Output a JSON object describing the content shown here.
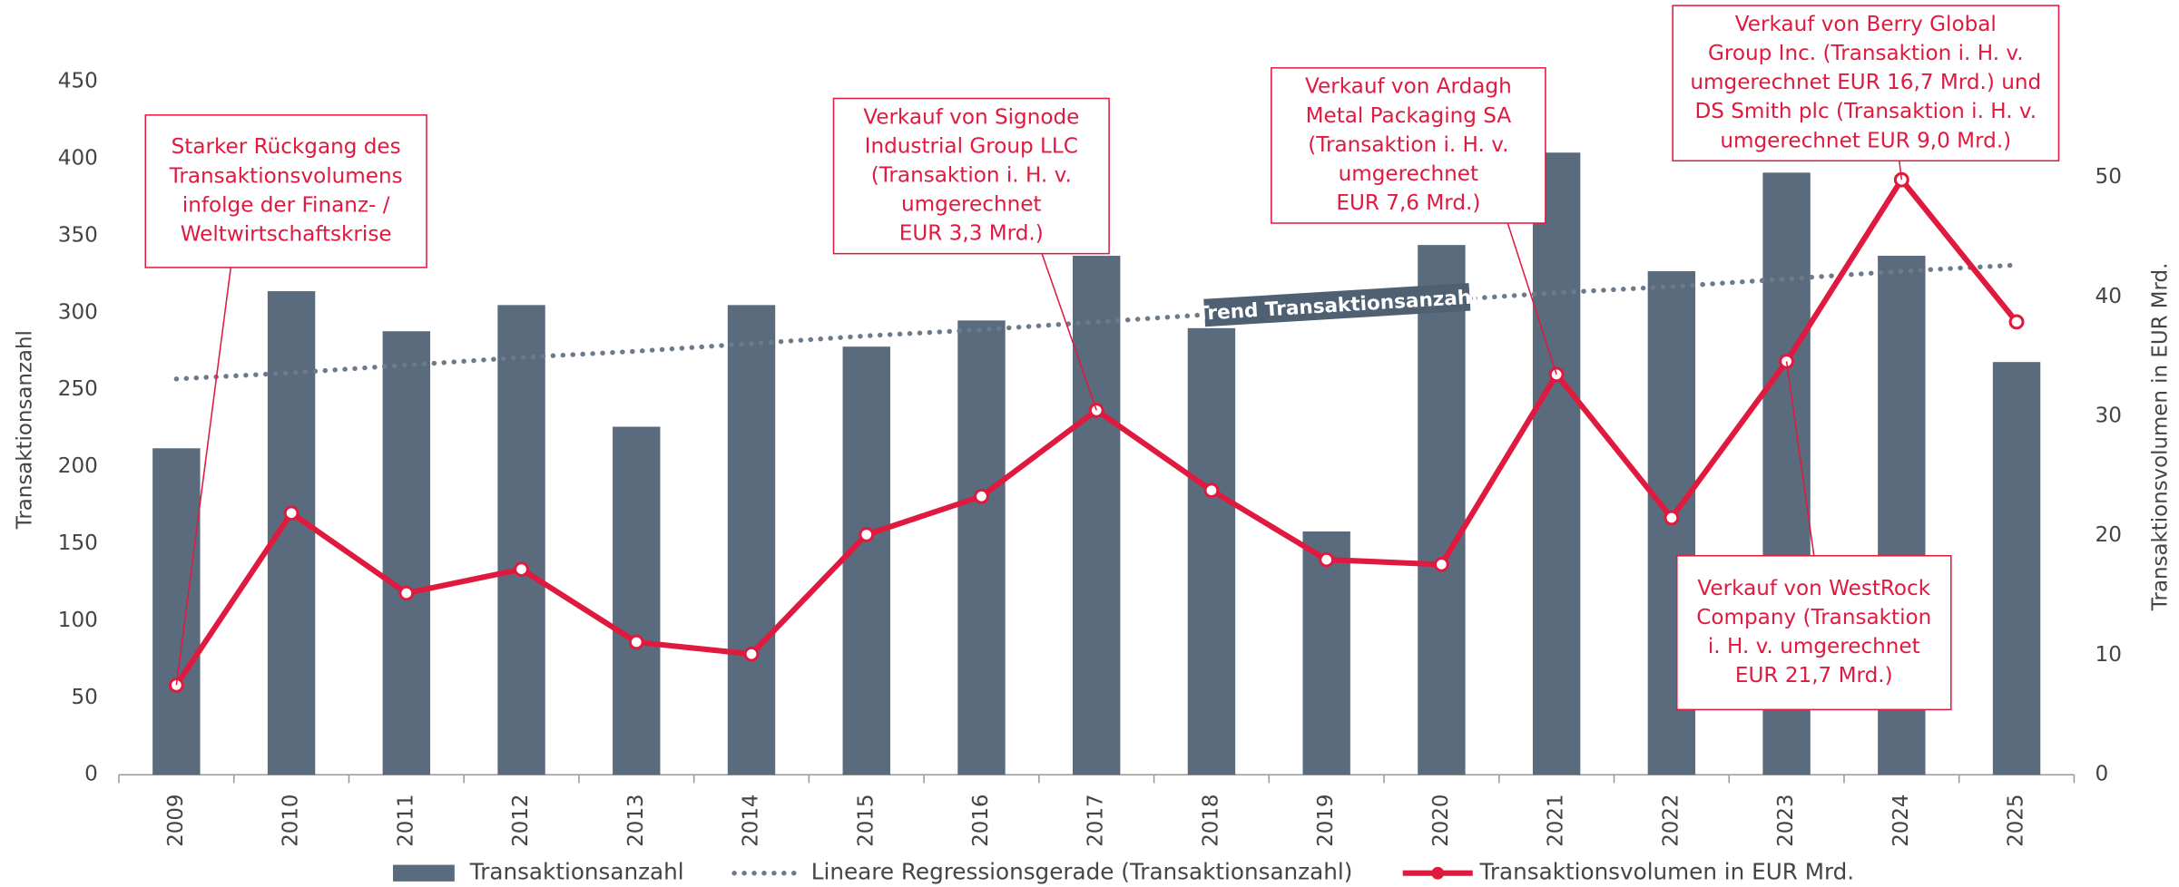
{
  "chart_data": {
    "type": "bar-line",
    "categories": [
      "2009",
      "2010",
      "2011",
      "2012",
      "2013",
      "2014",
      "2015",
      "2016",
      "2017",
      "2018",
      "2019",
      "2020",
      "2021",
      "2022",
      "2023",
      "2024",
      "2025"
    ],
    "y_label": "Transaktionsanzahl",
    "y2_label": "Transaktionsvolumen in EUR Mrd.",
    "ylim": [
      0,
      450
    ],
    "yticks": [
      0,
      50,
      100,
      150,
      200,
      250,
      300,
      350,
      400,
      450
    ],
    "y2lim": [
      0,
      58
    ],
    "y2ticks": [
      0,
      10,
      20,
      30,
      40,
      50
    ],
    "series": [
      {
        "name": "Transaktionsanzahl",
        "type": "bar",
        "color": "#5a6b7d",
        "values": [
          212,
          314,
          288,
          305,
          226,
          305,
          278,
          295,
          337,
          290,
          158,
          344,
          404,
          327,
          391,
          337,
          268
        ]
      },
      {
        "name": "Lineare Regressionsgerade (Transaktionsanzahl)",
        "type": "trend",
        "color": "#6b7b8c",
        "values": [
          257,
          261,
          266,
          271,
          275,
          280,
          285,
          289,
          294,
          299,
          303,
          308,
          313,
          317,
          322,
          327,
          331
        ]
      },
      {
        "name": "Transaktionsvolumen in EUR Mrd.",
        "type": "line",
        "color": "#e0193f",
        "axis": "y2",
        "values": [
          7.5,
          21.9,
          15.2,
          17.2,
          11.1,
          10.1,
          20.1,
          23.3,
          30.5,
          23.8,
          18.0,
          17.6,
          33.5,
          21.5,
          34.6,
          49.8,
          37.9
        ]
      }
    ],
    "trend_label": "Trend Transaktionsanzahl",
    "annotations": [
      {
        "lines": [
          "Starker Rückgang des",
          "Transaktionsvolumens",
          "infolge der Finanz- /",
          "Weltwirtschaftskrise"
        ]
      },
      {
        "lines": [
          "Verkauf von Signode",
          "Industrial Group LLC",
          "(Transaktion i. H. v.",
          "umgerechnet",
          "EUR 3,3 Mrd.)"
        ]
      },
      {
        "lines": [
          "Verkauf von Ardagh",
          "Metal Packaging SA",
          "(Transaktion i. H. v.",
          "umgerechnet",
          "EUR 7,6 Mrd.)"
        ]
      },
      {
        "lines": [
          "Verkauf von Berry Global",
          "Group Inc. (Transaktion i. H. v.",
          "umgerechnet EUR 16,7 Mrd.) und",
          "DS Smith plc (Transaktion i. H. v.",
          "umgerechnet EUR 9,0 Mrd.)"
        ]
      },
      {
        "lines": [
          "Verkauf von WestRock",
          "Company (Transaktion",
          "i. H. v. umgerechnet",
          "EUR 21,7 Mrd.)"
        ]
      }
    ]
  }
}
